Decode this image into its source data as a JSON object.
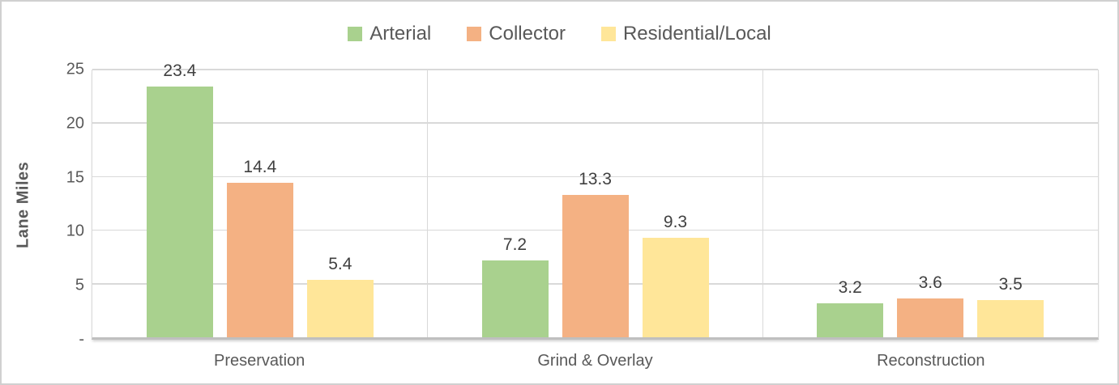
{
  "chart_data": {
    "type": "bar",
    "title": "",
    "categories": [
      "Preservation",
      "Grind & Overlay",
      "Reconstruction"
    ],
    "series": [
      {
        "name": "Arterial",
        "color": "#A9D18E",
        "values": [
          23.4,
          7.2,
          3.2
        ]
      },
      {
        "name": "Collector",
        "color": "#F4B183",
        "values": [
          14.4,
          13.3,
          3.6
        ]
      },
      {
        "name": "Residential/Local",
        "color": "#FFE699",
        "values": [
          5.4,
          9.3,
          3.5
        ]
      }
    ],
    "data_labels": [
      "23.4",
      "14.4",
      "5.4",
      "7.2",
      "13.3",
      "9.3",
      "3.2",
      "3.6",
      "3.5"
    ],
    "xlabel": "",
    "ylabel": "Lane Miles",
    "ylim": [
      0,
      25
    ],
    "yticks": [
      0,
      5,
      10,
      15,
      20,
      25
    ],
    "ytick_labels": [
      "-",
      "5",
      "10",
      "15",
      "20",
      "25"
    ],
    "grid": true,
    "legend_position": "top",
    "colors": {
      "gridline": "#D9D9D9",
      "axis_line": "#BFBFBF",
      "tick_text": "#595959",
      "label_text": "#404040",
      "frame_border": "#D0D0D0"
    }
  }
}
